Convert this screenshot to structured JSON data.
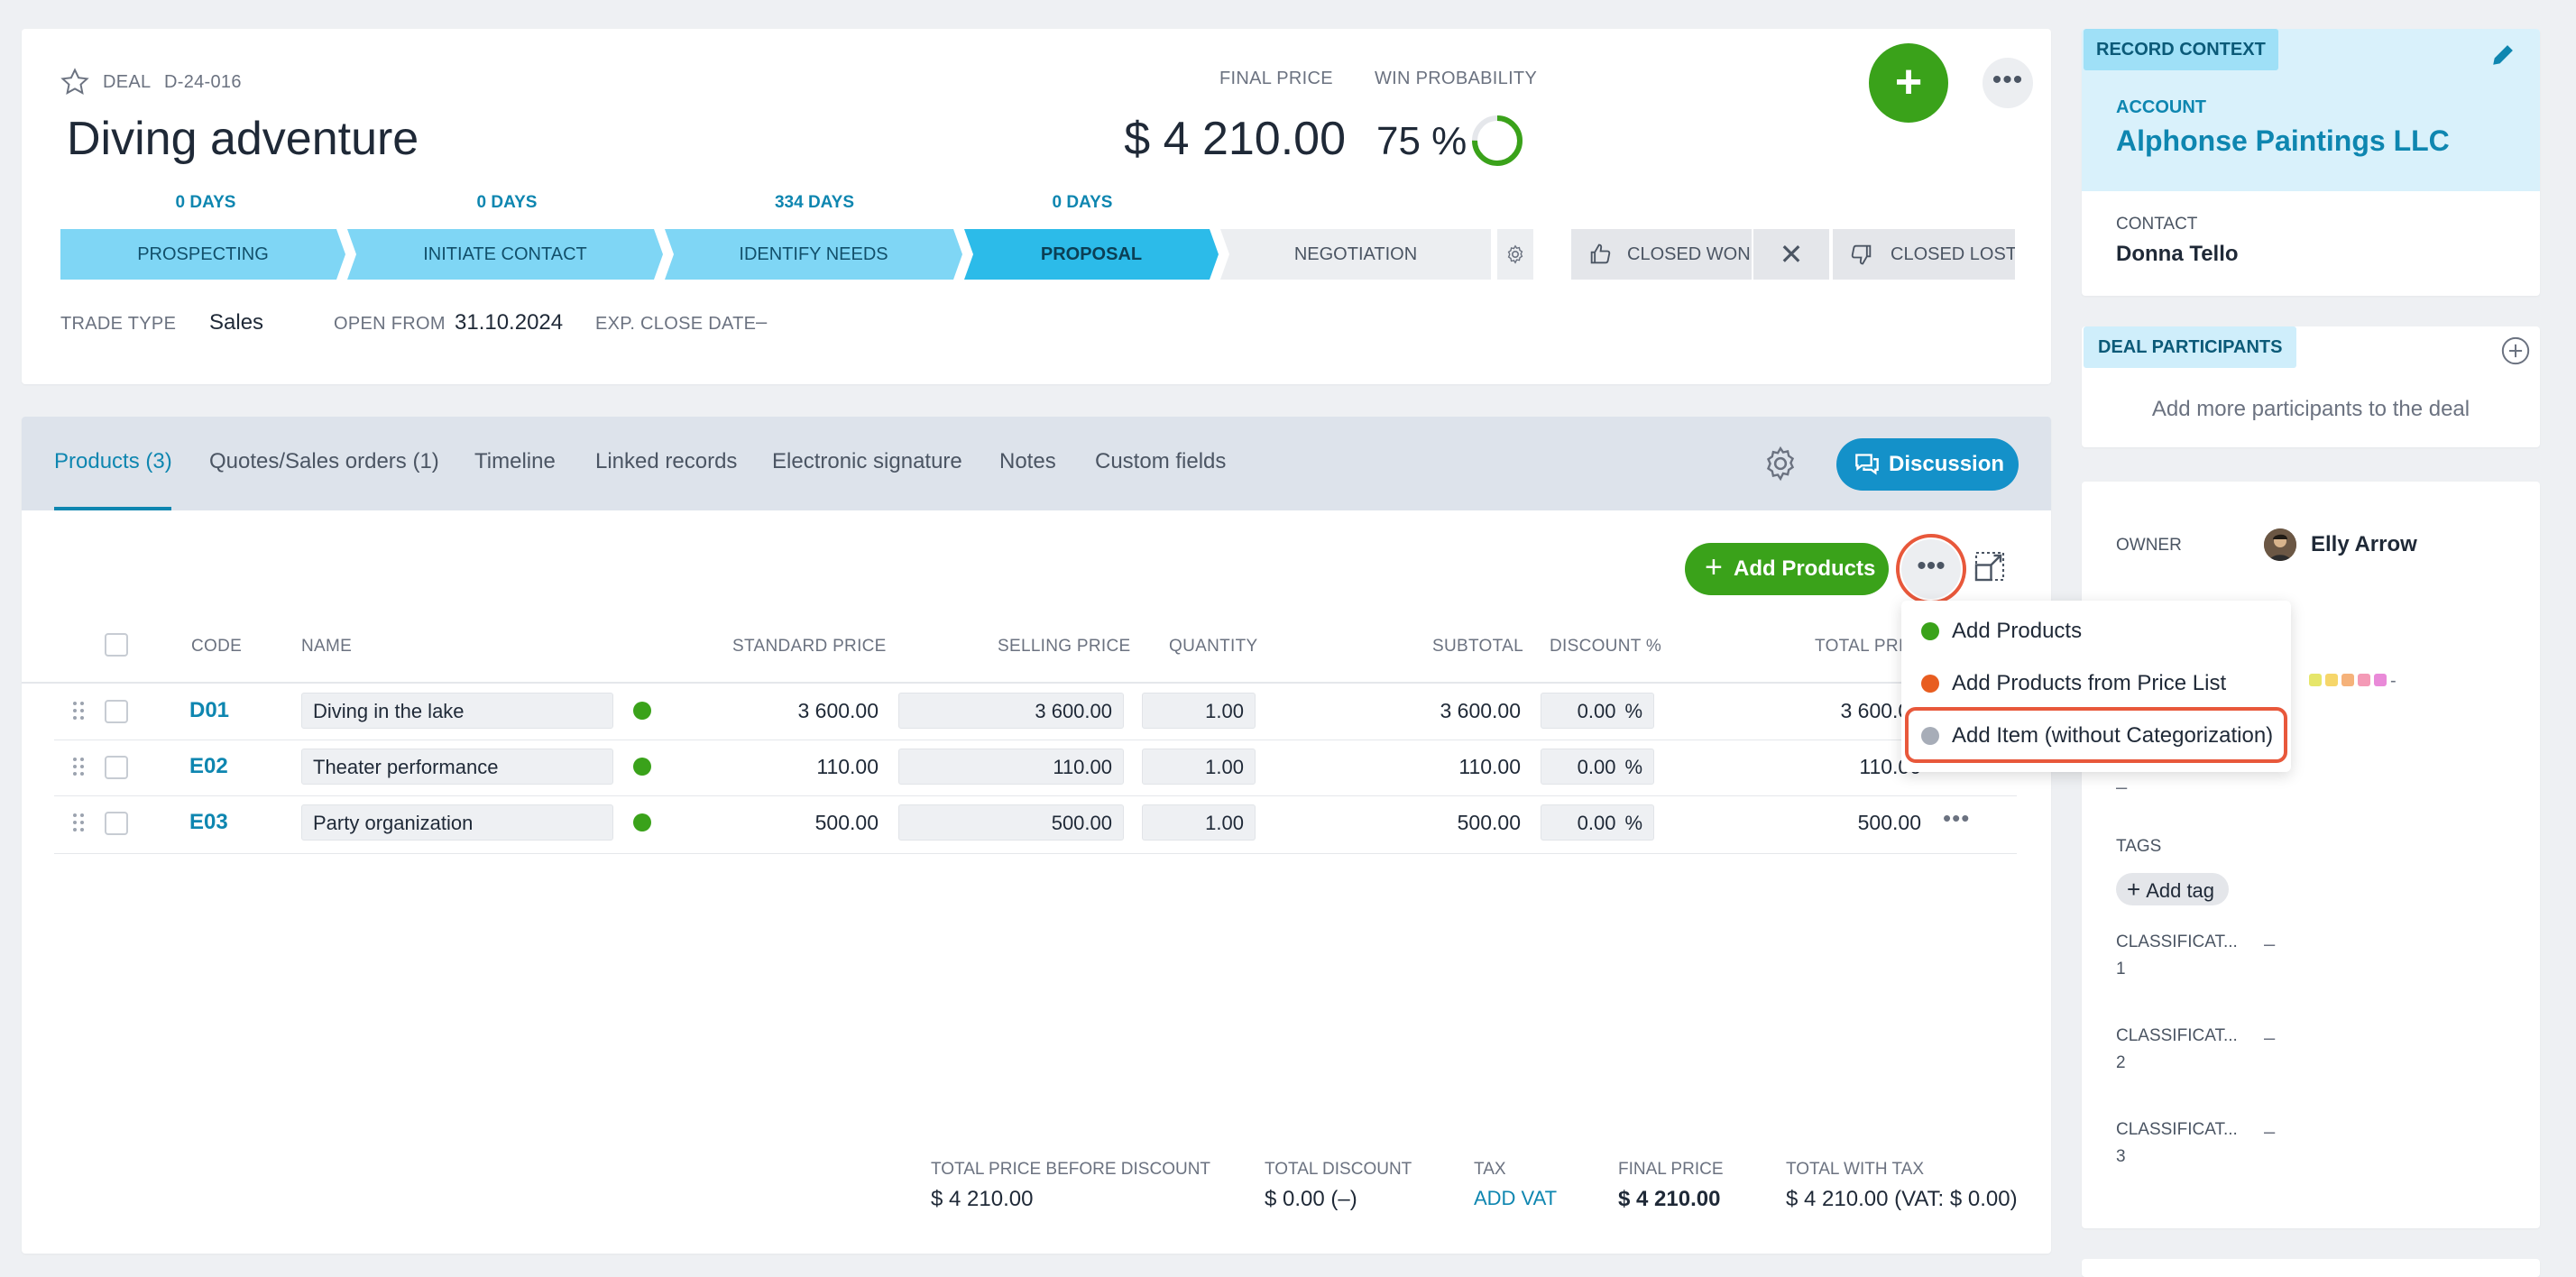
{
  "deal": {
    "type_label": "DEAL",
    "code": "D-24-016",
    "title": "Diving adventure",
    "final_price_label": "FINAL PRICE",
    "final_price": "$ 4 210.00",
    "win_prob_label": "WIN PROBABILITY",
    "win_prob": "75 %",
    "win_prob_fraction": 0.75
  },
  "stages": [
    {
      "days": "0 DAYS",
      "label": "PROSPECTING"
    },
    {
      "days": "0 DAYS",
      "label": "INITIATE CONTACT"
    },
    {
      "days": "334 DAYS",
      "label": "IDENTIFY NEEDS"
    },
    {
      "days": "0 DAYS",
      "label": "PROPOSAL"
    },
    {
      "days": "",
      "label": "NEGOTIATION"
    }
  ],
  "closing": {
    "won": "CLOSED WON",
    "lost": "CLOSED LOST"
  },
  "info": {
    "trade_type_label": "TRADE TYPE",
    "trade_type": "Sales",
    "open_from_label": "OPEN FROM",
    "open_from": "31.10.2024",
    "exp_close_label": "EXP. CLOSE DATE",
    "exp_close": "–"
  },
  "tabs": [
    "Products (3)",
    "Quotes/Sales orders (1)",
    "Timeline",
    "Linked records",
    "Electronic signature",
    "Notes",
    "Custom fields"
  ],
  "discussion_label": "Discussion",
  "add_products_label": "Add Products",
  "table": {
    "headers": [
      "CODE",
      "NAME",
      "STANDARD PRICE",
      "SELLING PRICE",
      "QUANTITY",
      "SUBTOTAL",
      "DISCOUNT %",
      "TOTAL PRICE"
    ],
    "rows": [
      {
        "code": "D01",
        "name": "Diving in the lake",
        "standard": "3 600.00",
        "selling": "3 600.00",
        "qty": "1.00",
        "subtotal": "3 600.00",
        "discount": "0.00",
        "pct": "%",
        "total": "3 600.00"
      },
      {
        "code": "E02",
        "name": "Theater performance",
        "standard": "110.00",
        "selling": "110.00",
        "qty": "1.00",
        "subtotal": "110.00",
        "discount": "0.00",
        "pct": "%",
        "total": "110.00"
      },
      {
        "code": "E03",
        "name": "Party organization",
        "standard": "500.00",
        "selling": "500.00",
        "qty": "1.00",
        "subtotal": "500.00",
        "discount": "0.00",
        "pct": "%",
        "total": "500.00"
      }
    ]
  },
  "menu": {
    "items": [
      {
        "label": "Add Products",
        "color": "#3aa21a"
      },
      {
        "label": "Add Products from Price List",
        "color": "#e85d20"
      },
      {
        "label": "Add Item (without Categorization)",
        "color": "#a7adb8"
      }
    ]
  },
  "totals": {
    "before_label": "TOTAL PRICE BEFORE DISCOUNT",
    "before": "$ 4 210.00",
    "discount_label": "TOTAL DISCOUNT",
    "discount": "$ 0.00 (–)",
    "tax_label": "TAX",
    "tax": "ADD VAT",
    "final_label": "FINAL PRICE",
    "final": "$ 4 210.00",
    "withtax_label": "TOTAL WITH TAX",
    "withtax": "$ 4 210.00 (VAT: $ 0.00)"
  },
  "context": {
    "chip": "RECORD CONTEXT",
    "account_label": "ACCOUNT",
    "account": "Alphonse Paintings LLC",
    "contact_label": "CONTACT",
    "contact": "Donna Tello"
  },
  "participants": {
    "chip": "DEAL PARTICIPANTS",
    "text": "Add more participants to the deal"
  },
  "owner": {
    "label": "OWNER",
    "name": "Elly Arrow",
    "dash": "–",
    "tags_label": "TAGS",
    "add_tag": "Add tag",
    "classifications": [
      {
        "label": "CLASSIFICAT... 1",
        "value": "–"
      },
      {
        "label": "CLASSIFICAT... 2",
        "value": "–"
      },
      {
        "label": "CLASSIFICAT... 3",
        "value": "–"
      }
    ]
  },
  "colors": {
    "accent": "#0e86b0",
    "green": "#3aa21a",
    "highlight": "#e8583b"
  }
}
